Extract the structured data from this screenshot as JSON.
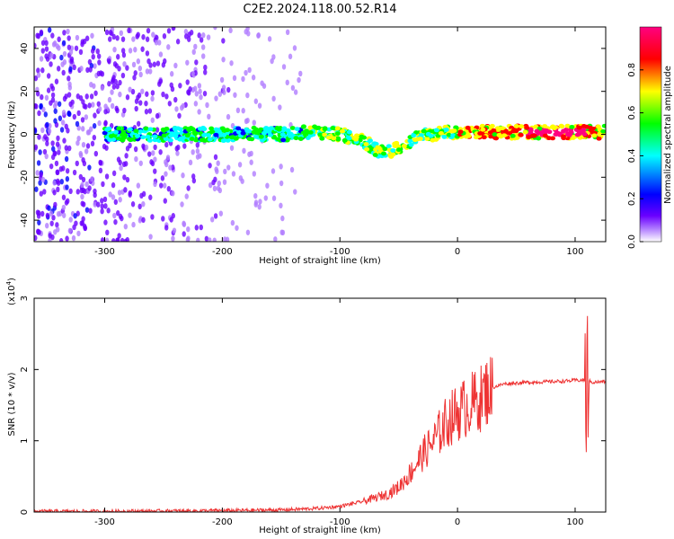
{
  "title": "C2E2.2024.118.00.52.R14",
  "chart_data": [
    {
      "type": "heatmap",
      "xlabel": "Height of straight line (km)",
      "ylabel": "Frequency (Hz)",
      "xlim": [
        -360,
        126
      ],
      "ylim": [
        -50,
        50
      ],
      "xticks": [
        -300,
        -200,
        -100,
        0,
        100
      ],
      "yticks": [
        -40,
        -20,
        0,
        20,
        40
      ],
      "colorbar": {
        "label": "Normalized spectral amplitude",
        "range": [
          0.0,
          1.0
        ],
        "ticks": [
          0.0,
          0.2,
          0.4,
          0.6,
          0.8
        ],
        "tick_labels": [
          "0.0",
          "0.2",
          "0.4",
          "0.6",
          "0.8"
        ],
        "colormap": [
          "#ffffff",
          "#6a00ff",
          "#0000ff",
          "#00ffff",
          "#00ff00",
          "#ffff00",
          "#ff0000",
          "#ff0080"
        ]
      },
      "ridge": {
        "x": [
          -300,
          -250,
          -200,
          -150,
          -120,
          -100,
          -80,
          -70,
          -60,
          -50,
          -40,
          -30,
          -20,
          -10,
          0,
          25,
          50,
          75,
          100,
          110,
          126
        ],
        "y": [
          0,
          0,
          0,
          0,
          1,
          0,
          -3,
          -7,
          -9,
          -6,
          -3,
          -1,
          0,
          1,
          1,
          1,
          1,
          1,
          1,
          1,
          1
        ]
      },
      "noise_region_x": [
        -360,
        -130
      ]
    },
    {
      "type": "line",
      "xlabel": "Height of straight line (km)",
      "ylabel": "SNR (10 * v/v)",
      "y_multiplier": "(x10^4)",
      "y_multiplier_base": "(x10",
      "y_multiplier_exp": "4",
      "xlim": [
        -360,
        126
      ],
      "ylim": [
        0,
        3
      ],
      "xticks": [
        -300,
        -200,
        -100,
        0,
        100
      ],
      "yticks": [
        0,
        1,
        2,
        3
      ],
      "color": "#ee3333",
      "x": [
        -360,
        -300,
        -200,
        -150,
        -120,
        -100,
        -80,
        -60,
        -50,
        -40,
        -30,
        -20,
        -10,
        0,
        10,
        20,
        25,
        30,
        40,
        60,
        80,
        95,
        100,
        105,
        110,
        115,
        126
      ],
      "y": [
        0.01,
        0.01,
        0.02,
        0.03,
        0.05,
        0.08,
        0.15,
        0.25,
        0.35,
        0.55,
        0.8,
        1.0,
        1.25,
        1.4,
        1.5,
        1.6,
        1.7,
        1.75,
        1.8,
        1.82,
        1.83,
        1.84,
        1.85,
        1.85,
        1.85,
        1.82,
        1.83
      ]
    }
  ]
}
